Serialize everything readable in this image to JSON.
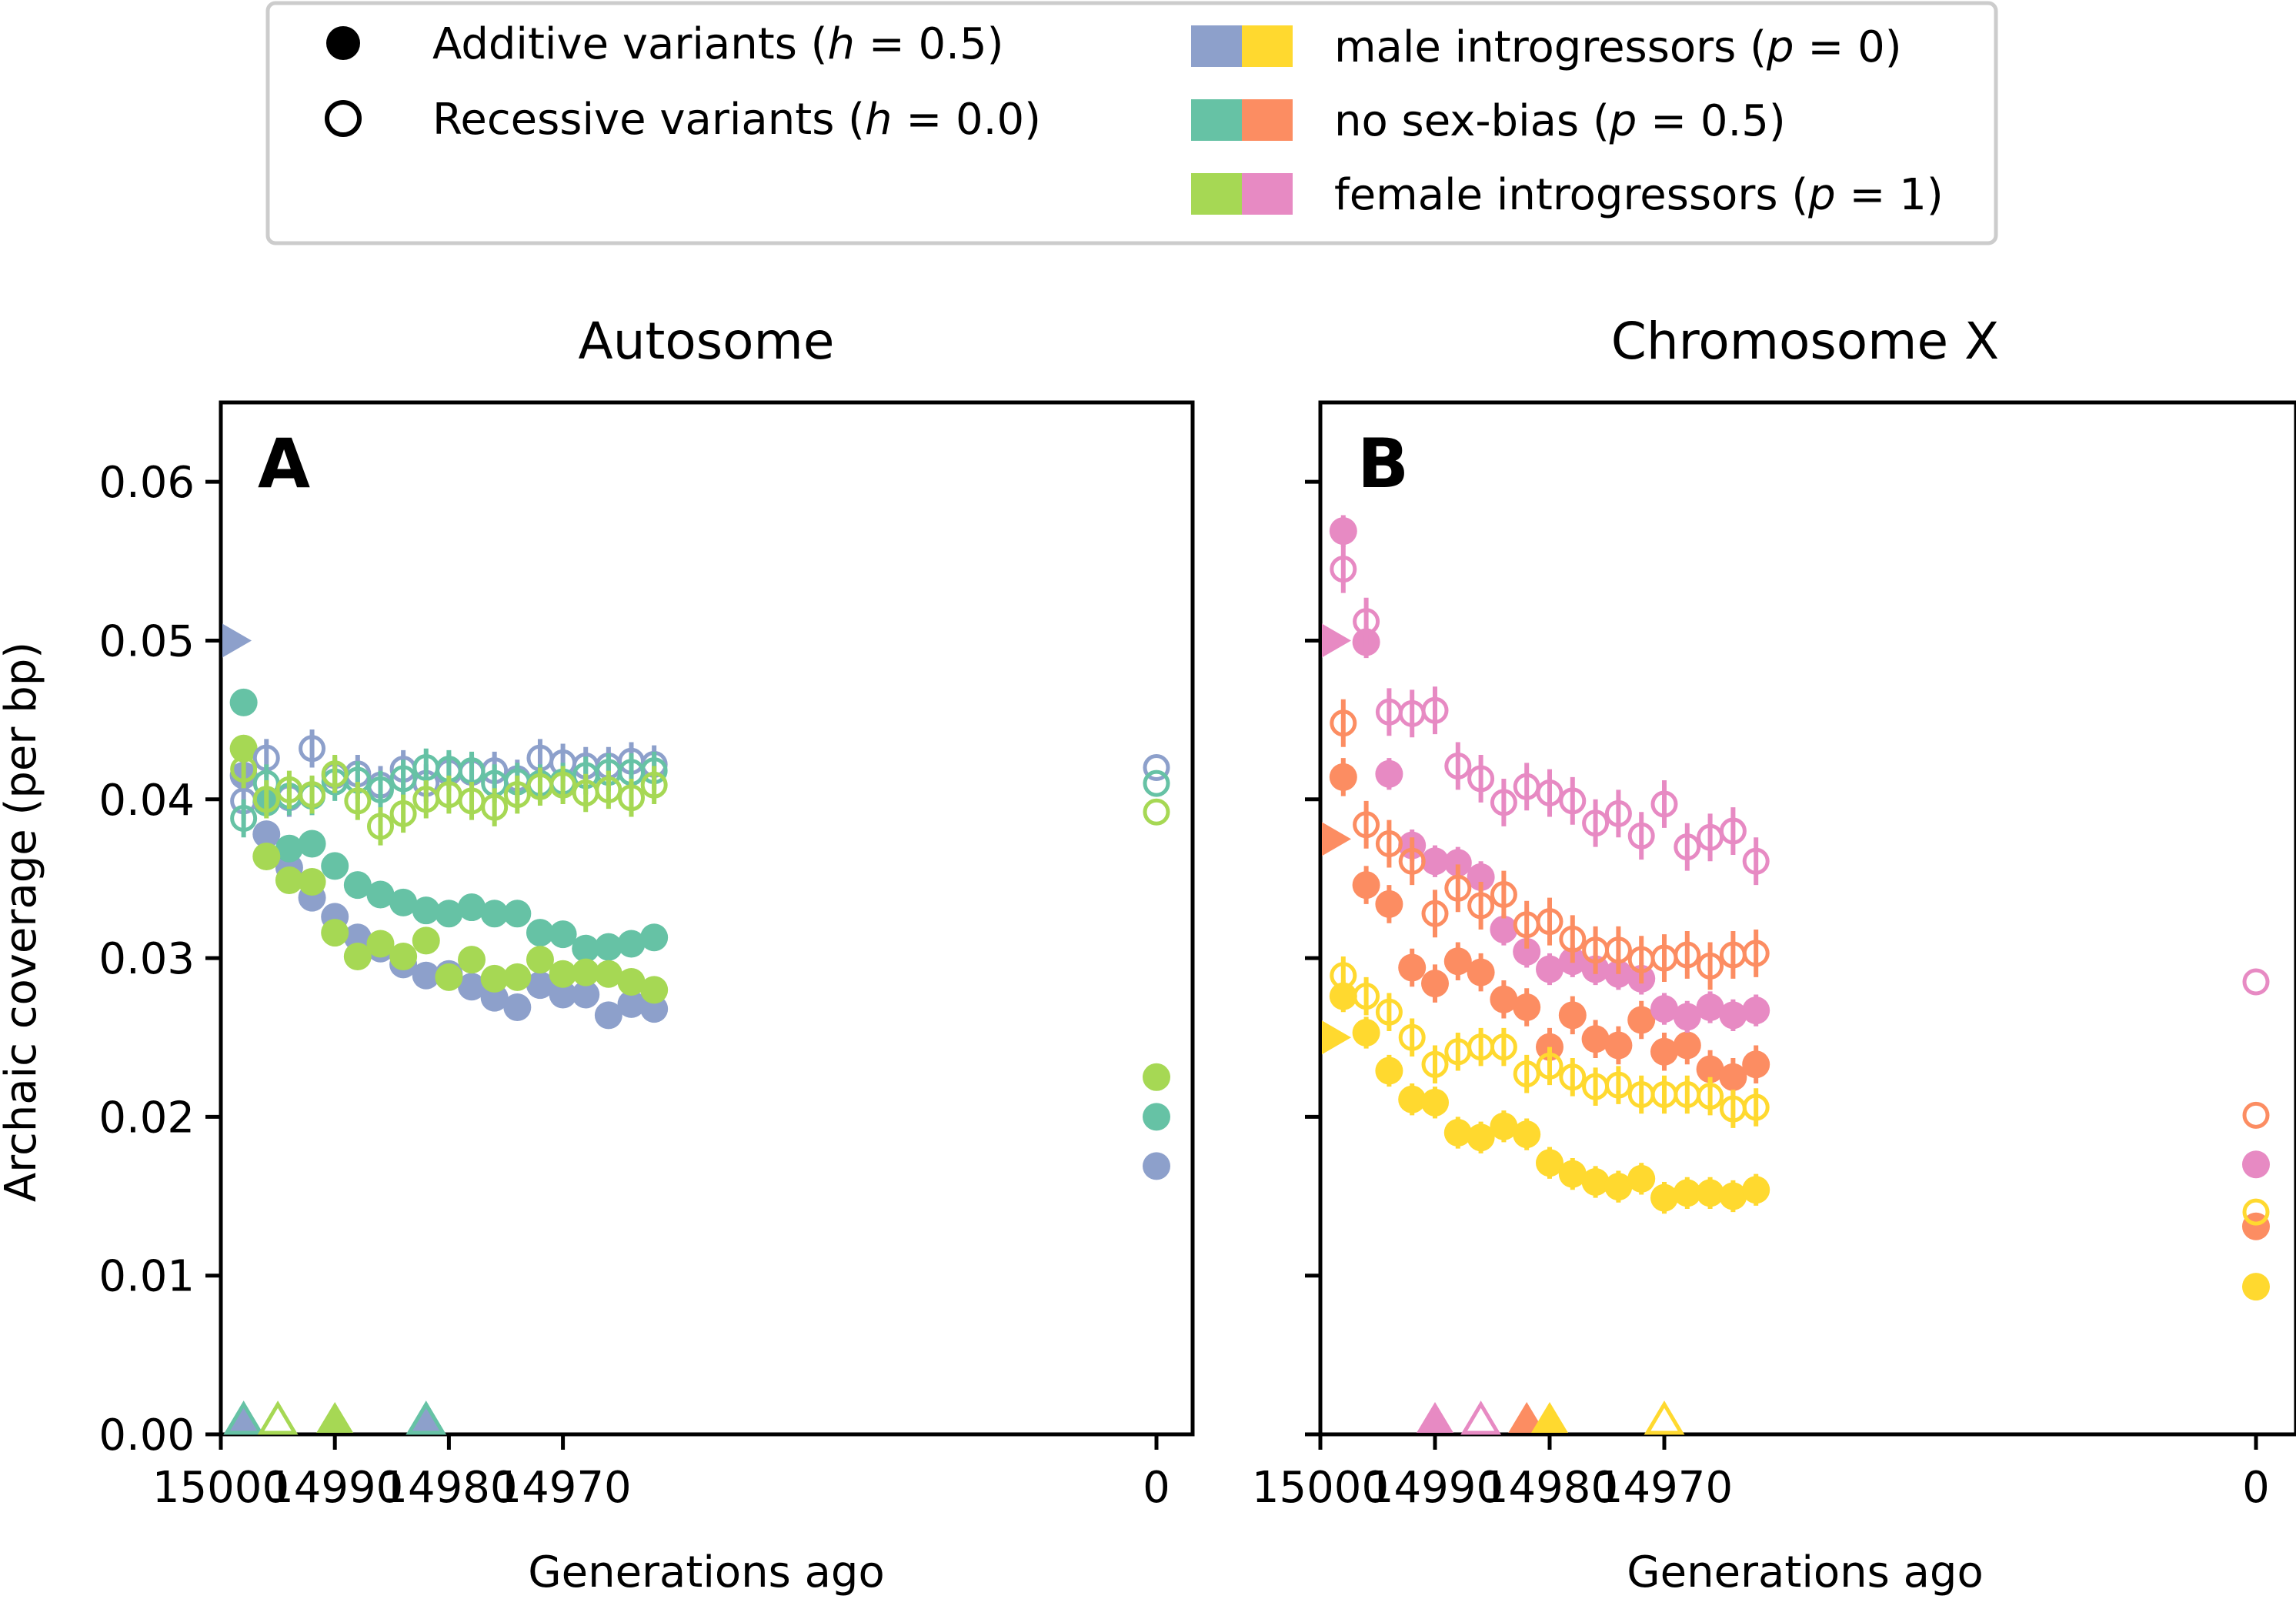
{
  "legend": {
    "shapes": [
      {
        "pre": "Additive variants (",
        "var": "h",
        "post": " = 0.5)",
        "fill": "filled"
      },
      {
        "pre": "Recessive variants (",
        "var": "h",
        "post": " = 0.0)",
        "fill": "open"
      }
    ],
    "groups": [
      {
        "pre": "male introgressors (",
        "var": "p",
        "post": " = 0)",
        "colors": [
          "#8DA0CB",
          "#FFD92F"
        ]
      },
      {
        "pre": "no sex-bias (",
        "var": "p",
        "post": " = 0.5)",
        "colors": [
          "#66C2A5",
          "#FC8D62"
        ]
      },
      {
        "pre": "female introgressors (",
        "var": "p",
        "post": " = 1)",
        "colors": [
          "#A6D854",
          "#E78AC3"
        ]
      }
    ]
  },
  "colors": {
    "male_auto": "#8DA0CB",
    "nobias_auto": "#66C2A5",
    "female_auto": "#A6D854",
    "male_x": "#FFD92F",
    "nobias_x": "#FC8D62",
    "female_x": "#E78AC3"
  },
  "chart_data": [
    {
      "type": "scatter",
      "panel_letter": "A",
      "title": "Autosome",
      "xlabel": "Generations ago",
      "ylabel": "Archaic coverage (per bp)",
      "xlim": [
        15000,
        14950
      ],
      "xticks": [
        "15000",
        "14990",
        "14980",
        "14970",
        "0"
      ],
      "ylim": [
        0,
        0.065
      ],
      "yticks": [
        "0.00",
        "0.01",
        "0.02",
        "0.03",
        "0.04",
        "0.05",
        "0.06"
      ],
      "grid": false,
      "x": [
        14998,
        14996,
        14994,
        14992,
        14990,
        14988,
        14986,
        14984,
        14982,
        14980,
        14978,
        14976,
        14974,
        14972,
        14970,
        14968,
        14966,
        14964,
        14962
      ],
      "series": [
        {
          "color": "#8DA0CB",
          "h": "0.5",
          "values": [
            0.0415,
            0.0378,
            0.0357,
            0.0338,
            0.0326,
            0.0313,
            0.0306,
            0.0296,
            0.0289,
            0.029,
            0.0282,
            0.0275,
            0.0269,
            0.0283,
            0.0277,
            0.0277,
            0.0264,
            0.0271,
            0.0268
          ],
          "err": 0.0008,
          "final": 0.0169
        },
        {
          "color": "#66C2A5",
          "h": "0.5",
          "values": [
            0.0461,
            0.0398,
            0.0369,
            0.0372,
            0.0358,
            0.0346,
            0.034,
            0.0335,
            0.033,
            0.0328,
            0.0332,
            0.0328,
            0.0328,
            0.0316,
            0.0315,
            0.0306,
            0.0307,
            0.0309,
            0.0313
          ],
          "err": 0.0008,
          "final": 0.02
        },
        {
          "color": "#A6D854",
          "h": "0.5",
          "values": [
            0.0432,
            0.0364,
            0.0349,
            0.0348,
            0.0316,
            0.0301,
            0.0309,
            0.0301,
            0.0311,
            0.0288,
            0.0299,
            0.0287,
            0.0288,
            0.0299,
            0.029,
            0.0291,
            0.029,
            0.0285,
            0.028
          ],
          "err": 0.0008,
          "final": 0.0225
        },
        {
          "color": "#8DA0CB",
          "h": "0.0",
          "values": [
            0.0399,
            0.0426,
            0.0401,
            0.0432,
            0.0415,
            0.0416,
            0.0409,
            0.0419,
            0.041,
            0.0417,
            0.0417,
            0.0418,
            0.0413,
            0.0426,
            0.0423,
            0.0421,
            0.0421,
            0.0424,
            0.0422
          ],
          "err": 0.0012,
          "final": 0.042
        },
        {
          "color": "#66C2A5",
          "h": "0.0",
          "values": [
            0.0388,
            0.041,
            0.0402,
            0.0402,
            0.0411,
            0.0412,
            0.0406,
            0.0413,
            0.042,
            0.0419,
            0.0418,
            0.041,
            0.0411,
            0.041,
            0.0411,
            0.0415,
            0.0417,
            0.0417,
            0.0418
          ],
          "err": 0.0012,
          "final": 0.041
        },
        {
          "color": "#A6D854",
          "h": "0.0",
          "values": [
            0.0419,
            0.04,
            0.0406,
            0.0403,
            0.0416,
            0.0399,
            0.0383,
            0.0391,
            0.04,
            0.0403,
            0.0399,
            0.0395,
            0.0403,
            0.0408,
            0.0409,
            0.0404,
            0.0406,
            0.0401,
            0.0409
          ],
          "err": 0.0012,
          "final": 0.0392
        }
      ],
      "side_markers": [
        {
          "y": 0.05,
          "color": "#8DA0CB"
        }
      ],
      "bottom_markers": [
        {
          "x": 14998,
          "color": "#8DA0CB",
          "filled": true
        },
        {
          "x": 14998,
          "color": "#66C2A5",
          "filled": false
        },
        {
          "x": 14995,
          "color": "#A6D854",
          "filled": false
        },
        {
          "x": 14990,
          "color": "#A6D854",
          "filled": true
        },
        {
          "x": 14982,
          "color": "#8DA0CB",
          "filled": true
        },
        {
          "x": 14982,
          "color": "#66C2A5",
          "filled": false
        }
      ]
    },
    {
      "type": "scatter",
      "panel_letter": "B",
      "title": "Chromosome X",
      "xlabel": "Generations ago",
      "ylabel": "",
      "xlim": [
        15000,
        14950
      ],
      "xticks": [
        "15000",
        "14990",
        "14980",
        "14970",
        "0"
      ],
      "ylim": [
        0,
        0.065
      ],
      "grid": false,
      "x": [
        14998,
        14996,
        14994,
        14992,
        14990,
        14988,
        14986,
        14984,
        14982,
        14980,
        14978,
        14976,
        14974,
        14972,
        14970,
        14968,
        14966,
        14964,
        14962
      ],
      "series": [
        {
          "color": "#FFD92F",
          "h": "0.5",
          "values": [
            0.0276,
            0.0253,
            0.0229,
            0.0211,
            0.0209,
            0.019,
            0.0187,
            0.0194,
            0.0189,
            0.0171,
            0.0164,
            0.0159,
            0.0156,
            0.0161,
            0.0149,
            0.0152,
            0.0152,
            0.015,
            0.0154
          ],
          "err": 0.001,
          "final": 0.0093
        },
        {
          "color": "#FC8D62",
          "h": "0.5",
          "values": [
            0.0414,
            0.0346,
            0.0334,
            0.0294,
            0.0284,
            0.0298,
            0.0291,
            0.0274,
            0.0269,
            0.0244,
            0.0264,
            0.0249,
            0.0245,
            0.0261,
            0.0241,
            0.0245,
            0.023,
            0.0225,
            0.0233
          ],
          "err": 0.0012,
          "final": 0.0131
        },
        {
          "color": "#E78AC3",
          "h": "0.5",
          "values": [
            0.0569,
            0.0499,
            0.0416,
            0.0371,
            0.0361,
            0.036,
            0.0351,
            0.0318,
            0.0304,
            0.0293,
            0.0298,
            0.0293,
            0.029,
            0.0287,
            0.0268,
            0.0263,
            0.0269,
            0.0264,
            0.0267
          ],
          "err": 0.001,
          "final": 0.017
        },
        {
          "color": "#FFD92F",
          "h": "0.0",
          "values": [
            0.0289,
            0.0276,
            0.0266,
            0.025,
            0.0233,
            0.0241,
            0.0244,
            0.0244,
            0.0227,
            0.0232,
            0.0225,
            0.0219,
            0.022,
            0.0214,
            0.0214,
            0.0214,
            0.0213,
            0.0205,
            0.0206
          ],
          "err": 0.0012,
          "final": 0.014
        },
        {
          "color": "#FC8D62",
          "h": "0.0",
          "values": [
            0.0448,
            0.0384,
            0.0372,
            0.0361,
            0.0328,
            0.0344,
            0.0333,
            0.034,
            0.0321,
            0.0323,
            0.0312,
            0.0305,
            0.0305,
            0.0299,
            0.03,
            0.0302,
            0.0295,
            0.0302,
            0.0303
          ],
          "err": 0.0015,
          "final": 0.0201
        },
        {
          "color": "#E78AC3",
          "h": "0.0",
          "values": [
            0.0545,
            0.0512,
            0.0455,
            0.0454,
            0.0456,
            0.0421,
            0.0413,
            0.0398,
            0.0408,
            0.0404,
            0.0399,
            0.0385,
            0.0391,
            0.0377,
            0.0397,
            0.037,
            0.0376,
            0.038,
            0.0361
          ],
          "err": 0.0015,
          "final": 0.0285
        }
      ],
      "side_markers": [
        {
          "y": 0.05,
          "color": "#E78AC3"
        },
        {
          "y": 0.0375,
          "color": "#FC8D62"
        },
        {
          "y": 0.025,
          "color": "#FFD92F"
        }
      ],
      "bottom_markers": [
        {
          "x": 14990,
          "color": "#E78AC3",
          "filled": true
        },
        {
          "x": 14986,
          "color": "#E78AC3",
          "filled": false
        },
        {
          "x": 14982,
          "color": "#FC8D62",
          "filled": true
        },
        {
          "x": 14980,
          "color": "#FFD92F",
          "filled": true
        },
        {
          "x": 14970,
          "color": "#FFD92F",
          "filled": false
        }
      ]
    }
  ]
}
